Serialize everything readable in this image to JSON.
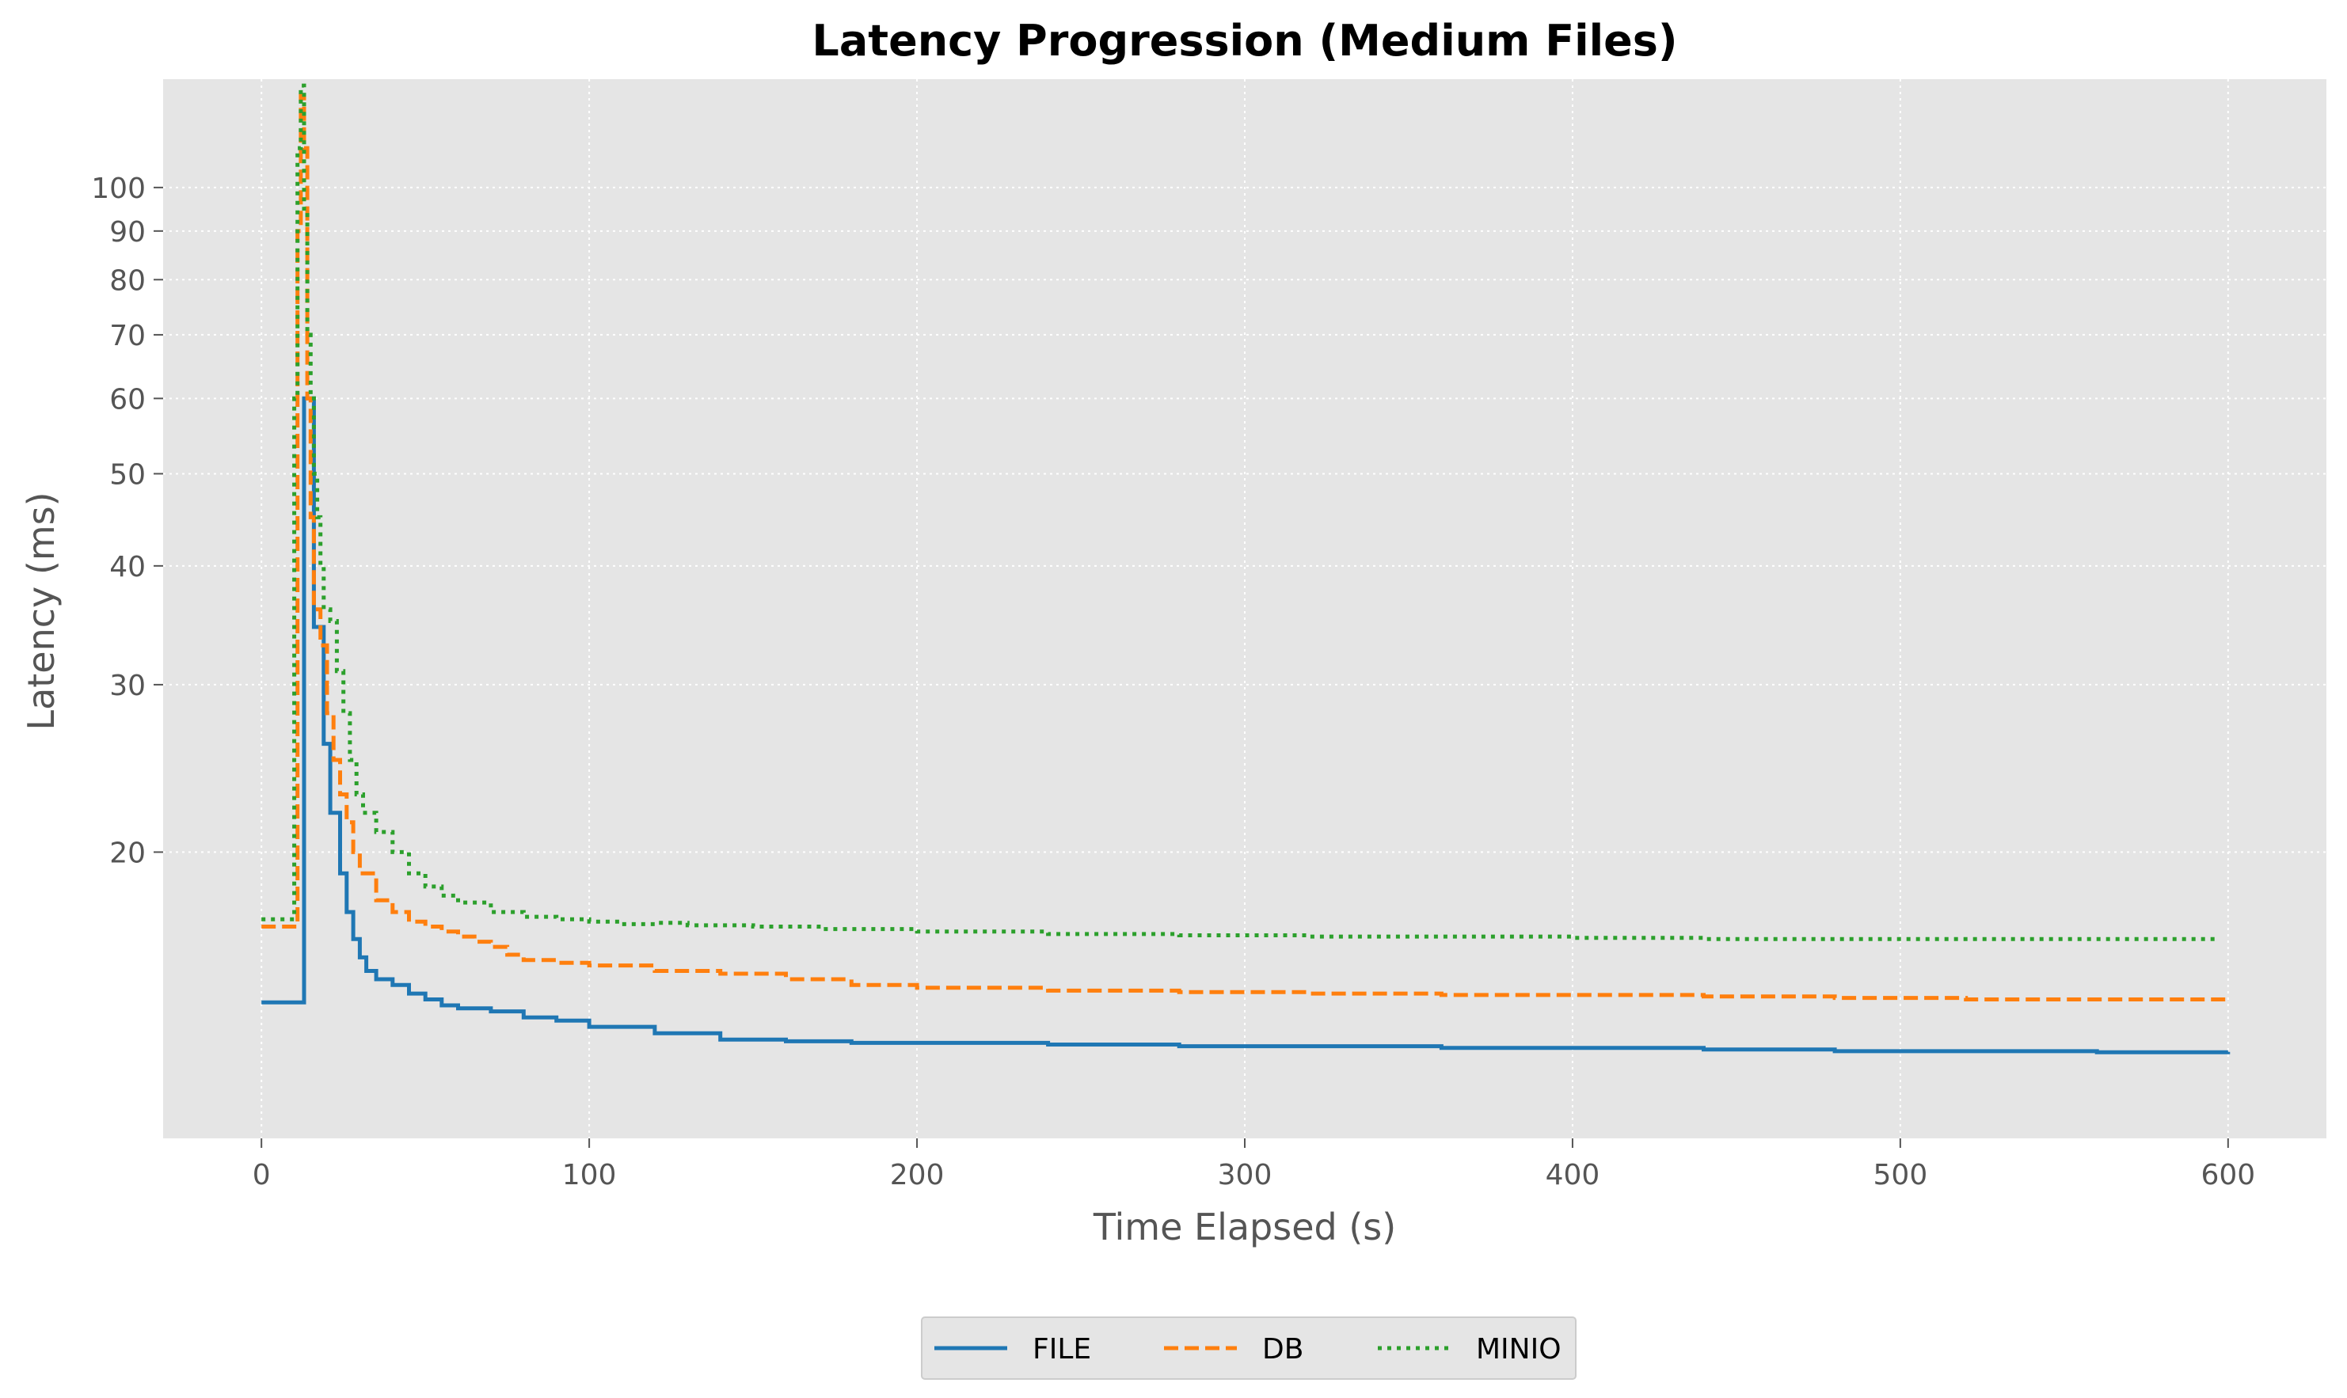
{
  "chart_data": {
    "type": "line",
    "title": "Latency Progression (Medium Files)",
    "xlabel": "Time Elapsed (s)",
    "ylabel": "Latency (ms)",
    "xlim": [
      -30,
      630
    ],
    "ylim": [
      10,
      130
    ],
    "yscale": "log",
    "xticks": [
      0,
      100,
      200,
      300,
      400,
      500,
      600
    ],
    "yticks": [
      20,
      30,
      40,
      50,
      60,
      70,
      80,
      90,
      100
    ],
    "grid": true,
    "legend_position": "bottom-center",
    "series": [
      {
        "name": "FILE",
        "color": "#1f77b4",
        "dash": "solid",
        "points": [
          [
            0,
            13.9
          ],
          [
            12,
            13.9
          ],
          [
            13,
            60
          ],
          [
            15,
            60
          ],
          [
            16,
            34.5
          ],
          [
            17,
            34.5
          ],
          [
            19,
            26
          ],
          [
            20,
            26
          ],
          [
            21,
            22
          ],
          [
            23,
            22
          ],
          [
            24,
            19
          ],
          [
            25,
            19
          ],
          [
            26,
            17.3
          ],
          [
            27,
            17.3
          ],
          [
            28,
            16.2
          ],
          [
            30,
            15.5
          ],
          [
            32,
            15
          ],
          [
            35,
            14.7
          ],
          [
            40,
            14.5
          ],
          [
            45,
            14.2
          ],
          [
            50,
            14
          ],
          [
            55,
            13.8
          ],
          [
            60,
            13.7
          ],
          [
            70,
            13.6
          ],
          [
            80,
            13.4
          ],
          [
            90,
            13.3
          ],
          [
            100,
            13.1
          ],
          [
            120,
            12.9
          ],
          [
            140,
            12.7
          ],
          [
            160,
            12.65
          ],
          [
            180,
            12.6
          ],
          [
            200,
            12.6
          ],
          [
            240,
            12.55
          ],
          [
            280,
            12.5
          ],
          [
            300,
            12.5
          ],
          [
            320,
            12.5
          ],
          [
            360,
            12.45
          ],
          [
            400,
            12.45
          ],
          [
            440,
            12.4
          ],
          [
            480,
            12.35
          ],
          [
            520,
            12.35
          ],
          [
            560,
            12.32
          ],
          [
            600,
            12.33
          ]
        ]
      },
      {
        "name": "DB",
        "color": "#ff7f0e",
        "dash": "dashed",
        "points": [
          [
            0,
            16.7
          ],
          [
            10,
            16.7
          ],
          [
            11,
            90
          ],
          [
            12,
            125
          ],
          [
            13,
            110
          ],
          [
            14,
            60
          ],
          [
            15,
            45
          ],
          [
            16,
            36
          ],
          [
            18,
            33
          ],
          [
            20,
            28
          ],
          [
            22,
            25
          ],
          [
            24,
            23
          ],
          [
            26,
            21.5
          ],
          [
            28,
            20
          ],
          [
            30,
            19
          ],
          [
            35,
            17.8
          ],
          [
            40,
            17.3
          ],
          [
            45,
            16.9
          ],
          [
            50,
            16.7
          ],
          [
            55,
            16.5
          ],
          [
            60,
            16.3
          ],
          [
            65,
            16.1
          ],
          [
            70,
            15.9
          ],
          [
            75,
            15.6
          ],
          [
            80,
            15.4
          ],
          [
            90,
            15.3
          ],
          [
            100,
            15.2
          ],
          [
            120,
            15
          ],
          [
            140,
            14.9
          ],
          [
            160,
            14.7
          ],
          [
            180,
            14.5
          ],
          [
            200,
            14.4
          ],
          [
            240,
            14.3
          ],
          [
            280,
            14.25
          ],
          [
            320,
            14.2
          ],
          [
            360,
            14.15
          ],
          [
            400,
            14.15
          ],
          [
            440,
            14.1
          ],
          [
            480,
            14.05
          ],
          [
            520,
            14
          ],
          [
            560,
            14
          ],
          [
            600,
            14
          ]
        ]
      },
      {
        "name": "MINIO",
        "color": "#2ca02c",
        "dash": "dotted",
        "points": [
          [
            0,
            17
          ],
          [
            9,
            17
          ],
          [
            10,
            60
          ],
          [
            11,
            110
          ],
          [
            12,
            128
          ],
          [
            13,
            95
          ],
          [
            14,
            70
          ],
          [
            15,
            60
          ],
          [
            16,
            50
          ],
          [
            17,
            45
          ],
          [
            18,
            40
          ],
          [
            19,
            36
          ],
          [
            21,
            35
          ],
          [
            23,
            31
          ],
          [
            25,
            28
          ],
          [
            27,
            25
          ],
          [
            29,
            23
          ],
          [
            31,
            22
          ],
          [
            35,
            21
          ],
          [
            40,
            20
          ],
          [
            45,
            19
          ],
          [
            50,
            18.4
          ],
          [
            55,
            18
          ],
          [
            60,
            17.7
          ],
          [
            70,
            17.3
          ],
          [
            80,
            17.1
          ],
          [
            90,
            17
          ],
          [
            100,
            16.9
          ],
          [
            110,
            16.8
          ],
          [
            120,
            16.85
          ],
          [
            130,
            16.75
          ],
          [
            150,
            16.7
          ],
          [
            170,
            16.6
          ],
          [
            200,
            16.5
          ],
          [
            240,
            16.4
          ],
          [
            280,
            16.35
          ],
          [
            320,
            16.3
          ],
          [
            360,
            16.3
          ],
          [
            400,
            16.25
          ],
          [
            440,
            16.2
          ],
          [
            480,
            16.2
          ],
          [
            520,
            16.2
          ],
          [
            560,
            16.2
          ],
          [
            597,
            16.2
          ]
        ]
      }
    ]
  }
}
